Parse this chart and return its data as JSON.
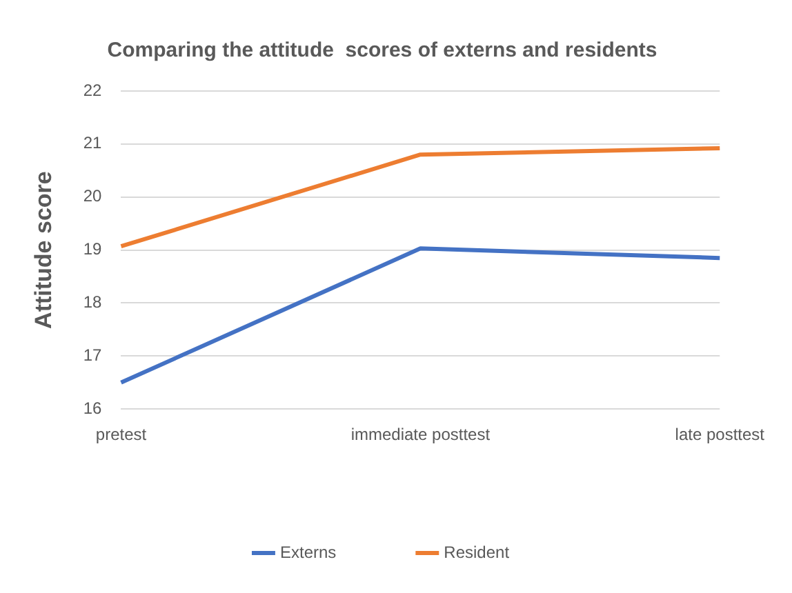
{
  "chart_data": {
    "type": "line",
    "title": "Comparing the attitude  scores of externs and residents",
    "ylabel": "Attitude score",
    "categories": [
      "pretest",
      "immediate posttest",
      "late posttest"
    ],
    "series": [
      {
        "name": "Externs",
        "color": "#4472c4",
        "values": [
          16.5,
          19.03,
          18.85
        ]
      },
      {
        "name": "Resident",
        "color": "#ed7d31",
        "values": [
          19.07,
          20.8,
          20.92
        ]
      }
    ],
    "ylim": [
      16,
      22
    ],
    "yticks": [
      16,
      17,
      18,
      19,
      20,
      21,
      22
    ],
    "grid": "y",
    "legend": "bottom",
    "marker": "none",
    "line_style": "solid"
  }
}
